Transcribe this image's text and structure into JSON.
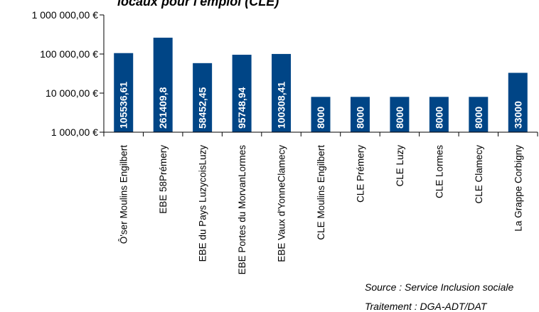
{
  "chart_data": {
    "type": "bar",
    "title": "locaux pour l'emploi (CLE)",
    "scale": "log",
    "ylim": [
      1000,
      1000000
    ],
    "yticks": [
      {
        "value": 1000000,
        "label": "1 000 000,00 €"
      },
      {
        "value": 100000,
        "label": "100 000,00 €"
      },
      {
        "value": 10000,
        "label": "10 000,00 €"
      },
      {
        "value": 1000,
        "label": "1 000,00 €"
      }
    ],
    "categories": [
      "Ô'ser Moulins Engilbert",
      "EBE 58Prémery",
      "EBE du Pays LuzycoisLuzy",
      "EBE Portes du MorvanLormes",
      "EBE Vaux d'YonneClamecy",
      "CLE Moulins Engilbert",
      "CLE Prémery",
      "CLE Luzy",
      "CLE Lormes",
      "CLE Clamecy",
      "La Grappe Corbigny"
    ],
    "values": [
      105536.61,
      261409.8,
      58452.45,
      95748.94,
      100308.41,
      8000,
      8000,
      8000,
      8000,
      8000,
      33000
    ],
    "value_labels": [
      "105536,61",
      "261409,8",
      "58452,45",
      "95748,94",
      "100308,41",
      "8000",
      "8000",
      "8000",
      "8000",
      "8000",
      "33000"
    ],
    "bar_color": "#004586",
    "grid": false,
    "legend": "none"
  },
  "notes": {
    "source": "Source : Service Inclusion sociale",
    "treatment": "Traitement : DGA-ADT/DAT"
  }
}
